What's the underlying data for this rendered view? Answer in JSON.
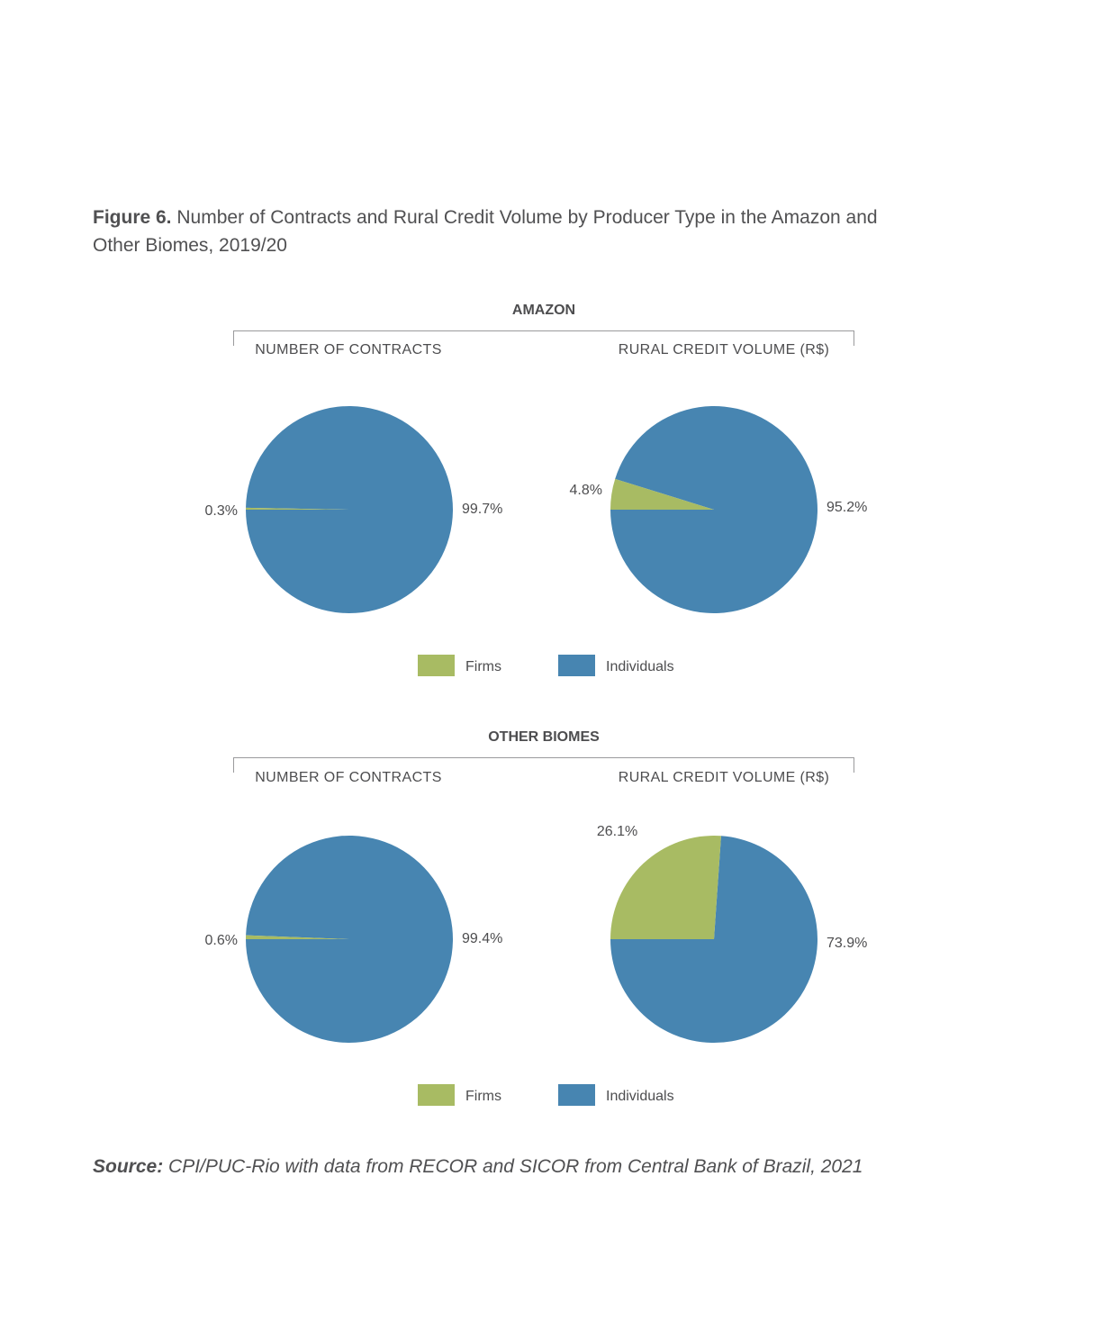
{
  "figure": {
    "label": "Figure 6.",
    "title": "Number of Contracts and Rural Credit Volume by Producer Type in the Amazon and Other Biomes, 2019/20"
  },
  "source": {
    "label": "Source:",
    "text": "CPI/PUC-Rio with data from RECOR and SICOR from Central Bank of Brazil, 2021"
  },
  "colors": {
    "firms": "#a8bb63",
    "individuals": "#4785b1"
  },
  "chart_data": [
    {
      "type": "pie",
      "group": "AMAZON",
      "title": "NUMBER OF CONTRACTS",
      "slices": [
        {
          "name": "Firms",
          "value": 0.3,
          "label": "0.3%"
        },
        {
          "name": "Individuals",
          "value": 99.7,
          "label": "99.7%"
        }
      ]
    },
    {
      "type": "pie",
      "group": "AMAZON",
      "title": "RURAL CREDIT VOLUME (R$)",
      "slices": [
        {
          "name": "Firms",
          "value": 4.8,
          "label": "4.8%"
        },
        {
          "name": "Individuals",
          "value": 95.2,
          "label": "95.2%"
        }
      ]
    },
    {
      "type": "pie",
      "group": "OTHER BIOMES",
      "title": "NUMBER OF CONTRACTS",
      "slices": [
        {
          "name": "Firms",
          "value": 0.6,
          "label": "0.6%"
        },
        {
          "name": "Individuals",
          "value": 99.4,
          "label": "99.4%"
        }
      ]
    },
    {
      "type": "pie",
      "group": "OTHER BIOMES",
      "title": "RURAL CREDIT VOLUME (R$)",
      "slices": [
        {
          "name": "Firms",
          "value": 26.1,
          "label": "26.1%"
        },
        {
          "name": "Individuals",
          "value": 73.9,
          "label": "73.9%"
        }
      ]
    }
  ],
  "sections": [
    {
      "title": "AMAZON"
    },
    {
      "title": "OTHER BIOMES"
    }
  ],
  "legend": [
    {
      "name": "Firms",
      "color": "#a8bb63"
    },
    {
      "name": "Individuals",
      "color": "#4785b1"
    }
  ]
}
